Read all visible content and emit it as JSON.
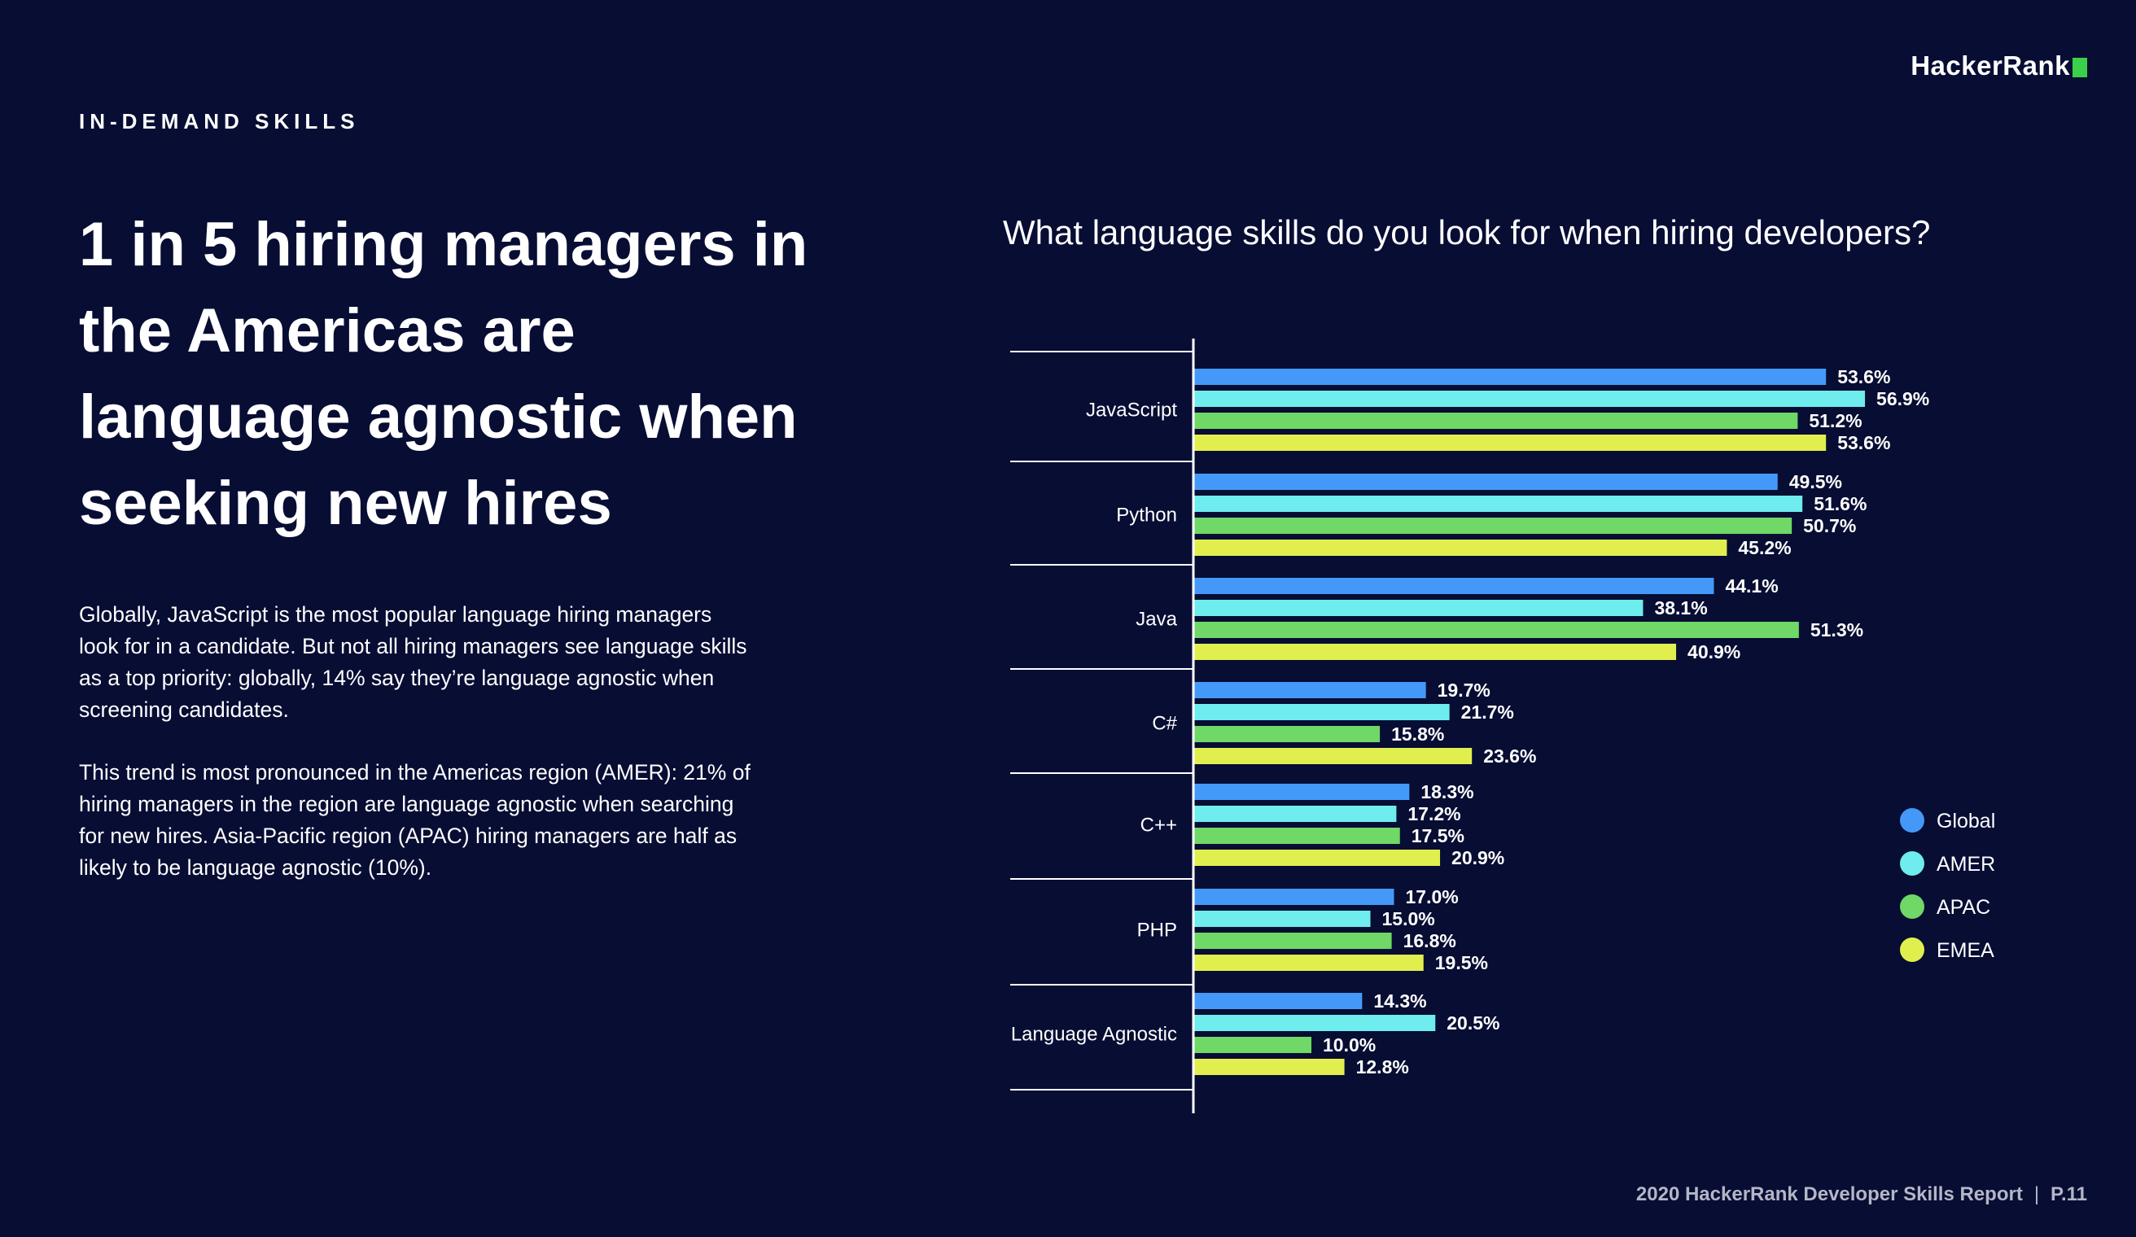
{
  "brand": {
    "name": "HackerRank",
    "accent": "#39d04a"
  },
  "section_label": "IN-DEMAND SKILLS",
  "headline": "1 in 5 hiring managers in the Americas are language agnostic when seeking new hires",
  "paragraphs": [
    "Globally, JavaScript is the most popular language hiring managers look for in a candidate. But not all hiring managers see language skills as a top priority: globally, 14% say they’re language agnostic when screening candidates.",
    "This trend is most pronounced in the Americas region (AMER): 21% of hiring managers in the region are language agnostic when searching for new hires. Asia-Pacific region (APAC) hiring managers are half as likely to be language agnostic (10%)."
  ],
  "footer": {
    "report": "2020 HackerRank Developer Skills Report",
    "page": "P.11"
  },
  "chart_data": {
    "type": "bar",
    "orientation": "horizontal",
    "title": "What language skills do you look for when hiring developers?",
    "categories": [
      "JavaScript",
      "Python",
      "Java",
      "C#",
      "C++",
      "PHP",
      "Language Agnostic"
    ],
    "series": [
      {
        "name": "Global",
        "color": "#4499f8",
        "values": [
          53.6,
          49.5,
          44.1,
          19.7,
          18.3,
          17.0,
          14.3
        ]
      },
      {
        "name": "AMER",
        "color": "#6eecee",
        "values": [
          56.9,
          51.6,
          38.1,
          21.7,
          17.2,
          15.0,
          20.5
        ]
      },
      {
        "name": "APAC",
        "color": "#6fd866",
        "values": [
          51.2,
          50.7,
          51.3,
          15.8,
          17.5,
          16.8,
          10.0
        ]
      },
      {
        "name": "EMEA",
        "color": "#e1ef4e",
        "values": [
          53.6,
          45.2,
          40.9,
          23.6,
          20.9,
          19.5,
          12.8
        ]
      }
    ],
    "value_format": "percent_1dp",
    "legend_position": "right",
    "grid": false
  }
}
